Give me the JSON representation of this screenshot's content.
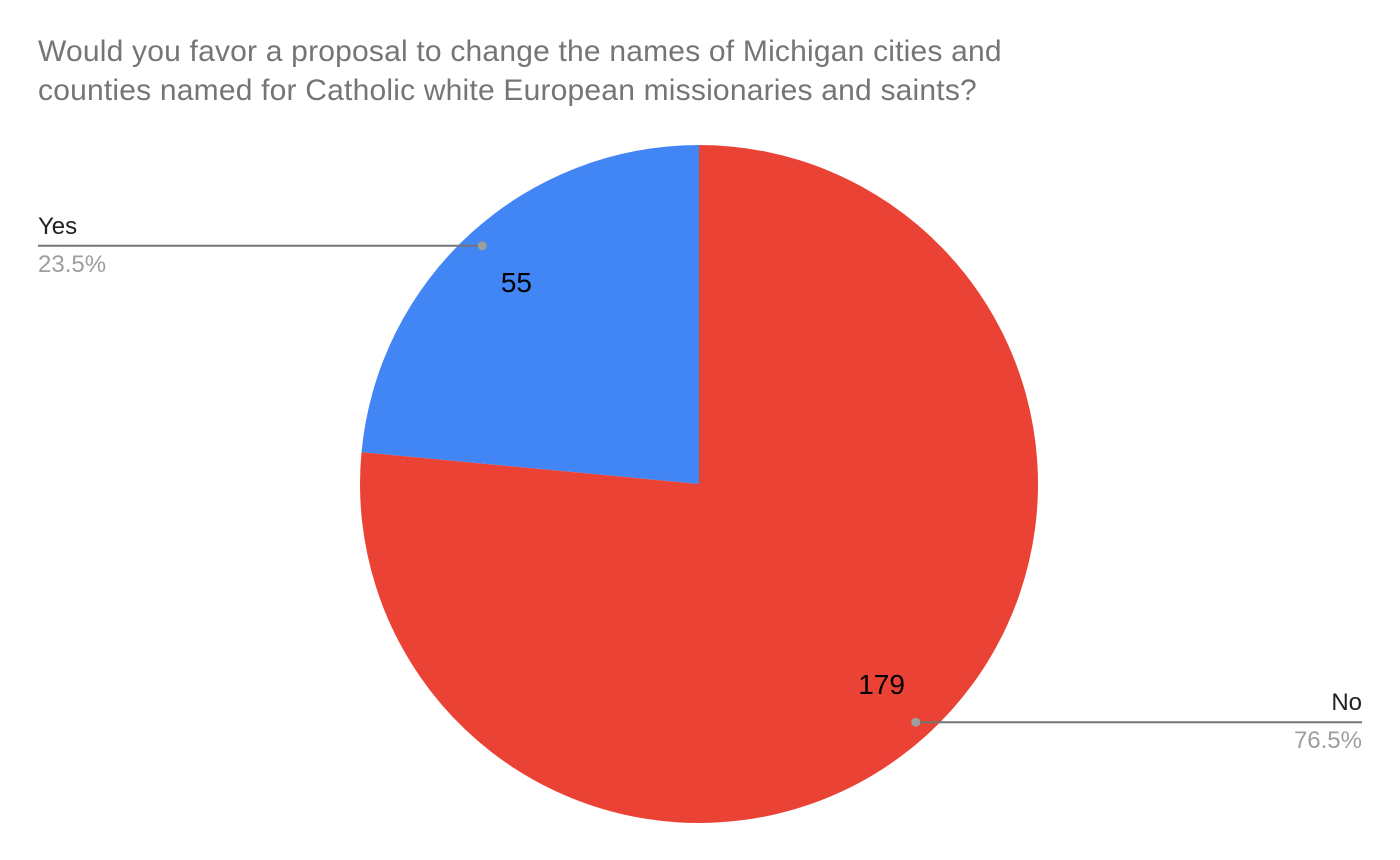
{
  "title": {
    "lines": [
      "Would you favor a proposal to change the names of Michigan cities and",
      "counties named for Catholic white European missionaries and saints?"
    ],
    "color": "#757575"
  },
  "chart_data": {
    "type": "pie",
    "title": "Would you favor a proposal to change the names of Michigan cities and counties named for Catholic white European missionaries and saints?",
    "slices": [
      {
        "label": "Yes",
        "value": 55,
        "percent": 23.5,
        "percent_label": "23.5%",
        "color": "#4285F4",
        "callout_side": "left"
      },
      {
        "label": "No",
        "value": 179,
        "percent": 76.5,
        "percent_label": "76.5%",
        "color": "#EA4335",
        "callout_side": "right"
      }
    ],
    "start_angle_deg": 0,
    "direction": "counterclockwise",
    "value_labels_position": "inside",
    "legend_position": "callouts",
    "colors": {
      "value_label": "#000000",
      "callout_label": "#212121",
      "callout_percent": "#9E9E9E",
      "leader_line": "#757575",
      "leader_dot": "#9E9E9E",
      "background": "#FFFFFF"
    }
  }
}
